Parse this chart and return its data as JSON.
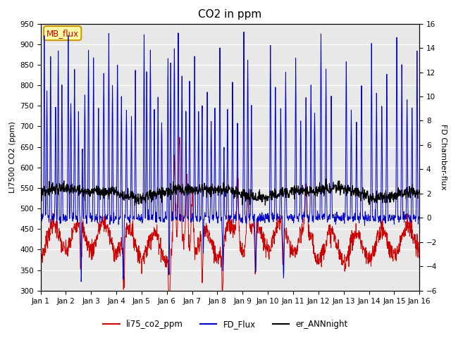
{
  "title": "CO2 in ppm",
  "ylabel_left": "LI7500 CO2 (ppm)",
  "ylabel_right": "FD Chamber-flux",
  "ylim_left": [
    300,
    950
  ],
  "ylim_right": [
    -6,
    16
  ],
  "yticks_left": [
    300,
    350,
    400,
    450,
    500,
    550,
    600,
    650,
    700,
    750,
    800,
    850,
    900,
    950
  ],
  "yticks_right": [
    -6,
    -4,
    -2,
    0,
    2,
    4,
    6,
    8,
    10,
    12,
    14,
    16
  ],
  "xtick_labels": [
    "Jan 1",
    "Jan 2",
    "Jan 3",
    "Jan 4",
    "Jan 5",
    "Jan 6",
    "Jan 7",
    "Jan 8",
    "Jan 9",
    "Jan 10",
    "Jan 11",
    "Jan 12",
    "Jan 13",
    "Jan 14",
    "Jan 15",
    "Jan 16"
  ],
  "n_days": 15,
  "pts_per_day": 96,
  "color_co2": "#cc0000",
  "color_fd": "#0000cc",
  "color_ann": "#000000",
  "legend_labels": [
    "li75_co2_ppm",
    "FD_Flux",
    "er_ANNnight"
  ],
  "annotation_text": "MB_flux",
  "annotation_color": "#cc0000",
  "annotation_bg": "#ffffaa",
  "annotation_border": "#cc9900",
  "background_color": "#e8e8e8",
  "grid_color": "#ffffff",
  "title_fontsize": 11,
  "label_fontsize": 8,
  "tick_fontsize": 7.5
}
